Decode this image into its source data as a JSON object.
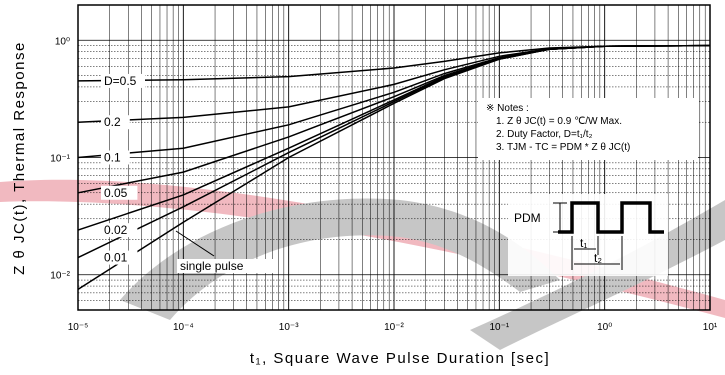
{
  "chart_data": {
    "type": "line",
    "xlabel": "t₁, Square Wave Pulse Duration [sec]",
    "ylabel": "Z θ JC(t), Thermal Response",
    "xscale": "log",
    "yscale": "log",
    "xlim": [
      1e-05,
      10
    ],
    "ylim": [
      0.005,
      2
    ],
    "grid": true,
    "x_tick_labels": [
      "10⁻⁵",
      "10⁻⁴",
      "10⁻³",
      "10⁻²",
      "10⁻¹",
      "10⁰",
      "10¹"
    ],
    "y_tick_labels": [
      "10⁻²",
      "10⁻¹",
      "10⁰"
    ],
    "series": [
      {
        "name": "D=0.5",
        "label_text": "D=0.5",
        "x": [
          1e-05,
          0.0001,
          0.001,
          0.01,
          0.03,
          0.1,
          0.3,
          1,
          10
        ],
        "y": [
          0.45,
          0.46,
          0.49,
          0.58,
          0.66,
          0.78,
          0.86,
          0.89,
          0.9
        ]
      },
      {
        "name": "0.2",
        "label_text": "0.2",
        "x": [
          1e-05,
          0.0001,
          0.001,
          0.01,
          0.03,
          0.1,
          0.3,
          1,
          10
        ],
        "y": [
          0.2,
          0.22,
          0.27,
          0.42,
          0.56,
          0.73,
          0.85,
          0.89,
          0.9
        ]
      },
      {
        "name": "0.1",
        "label_text": "0.1",
        "x": [
          1e-05,
          0.0001,
          0.001,
          0.01,
          0.03,
          0.1,
          0.3,
          1,
          10
        ],
        "y": [
          0.1,
          0.12,
          0.19,
          0.36,
          0.52,
          0.71,
          0.84,
          0.89,
          0.9
        ]
      },
      {
        "name": "0.05",
        "label_text": "0.05",
        "x": [
          1e-05,
          0.0001,
          0.001,
          0.01,
          0.03,
          0.1,
          0.3,
          1,
          10
        ],
        "y": [
          0.05,
          0.075,
          0.15,
          0.33,
          0.5,
          0.7,
          0.84,
          0.89,
          0.9
        ]
      },
      {
        "name": "0.02",
        "label_text": "0.02",
        "x": [
          1e-05,
          0.0001,
          0.001,
          0.01,
          0.03,
          0.1,
          0.3,
          1,
          10
        ],
        "y": [
          0.024,
          0.048,
          0.12,
          0.31,
          0.49,
          0.7,
          0.84,
          0.89,
          0.9
        ]
      },
      {
        "name": "0.01",
        "label_text": "0.01",
        "x": [
          1e-05,
          0.0001,
          0.001,
          0.01,
          0.03,
          0.1,
          0.3,
          1,
          10
        ],
        "y": [
          0.014,
          0.038,
          0.11,
          0.3,
          0.48,
          0.69,
          0.84,
          0.89,
          0.9
        ]
      },
      {
        "name": "single pulse",
        "label_text": "single pulse",
        "x": [
          1e-05,
          0.0001,
          0.001,
          0.01,
          0.03,
          0.1,
          0.3,
          1,
          10
        ],
        "y": [
          0.0075,
          0.028,
          0.1,
          0.29,
          0.47,
          0.69,
          0.84,
          0.89,
          0.9
        ]
      }
    ],
    "annotation": {
      "heading": "※ Notes :",
      "lines": [
        "1. Z θ JC(t) = 0.9 ℃/W Max.",
        "2. Duty Factor, D=t₁/t₂",
        "3. TJM - TC = PDM * Z θ JC(t)"
      ]
    },
    "pulse_diagram": {
      "pdm_label": "PDM",
      "t1_label": "t₁",
      "t2_label": "t₂"
    }
  }
}
